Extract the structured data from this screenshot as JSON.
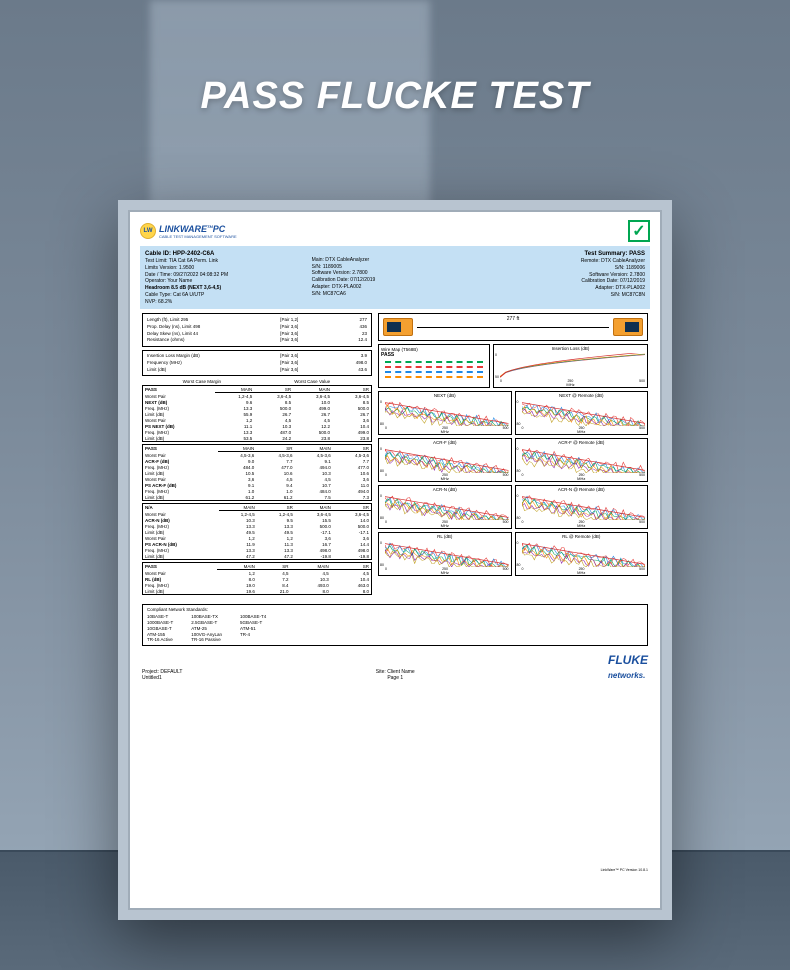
{
  "page_title": "PASS FLUCKE TEST",
  "logo": {
    "badge": "LW",
    "name": "LINKWARE",
    "tm": "TM",
    "suffix": "PC",
    "sub": "CABLE TEST MANAGEMENT SOFTWARE"
  },
  "checkmark": "✓",
  "header": {
    "left": {
      "cable_id_label": "Cable ID:",
      "cable_id": "HPP-2402-C6A",
      "lines": [
        "Test Limit: TIA Cat 6A Perm. Link",
        "Limits Version: 1.9500",
        "Date / Time: 09/27/2022  04:08:32 PM",
        "Operator: Your Name",
        "Headroom 8.5 dB (NEXT 3,6-4,5)",
        "Cable Type: Cat 6A U/UTP",
        "NVP: 68.2%"
      ],
      "headroom_bold_idx": 4
    },
    "mid": {
      "lines": [
        "Main: DTX CableAnalyzer",
        "S/N: 1189005",
        "Software Version: 2.7800",
        "Calibration Date: 07/12/2019",
        "Adapter: DTX-PLA002",
        "S/N: MC87CA6"
      ]
    },
    "right": {
      "summary_label": "Test Summary:",
      "summary": "PASS",
      "lines": [
        "Remote: DTX CableAnalyzer",
        "S/N: 1189006",
        "Software Version: 2.7800",
        "Calibration Date: 07/12/2019",
        "Adapter: DTX-PLA002",
        "S/N: MC87C8N"
      ]
    }
  },
  "basics": {
    "rows": [
      [
        "Length (ft), Limit 295",
        "[Pair 1,2]",
        "277"
      ],
      [
        "Prop. Delay (ns), Limit 498",
        "[Pair 3,6]",
        "436"
      ],
      [
        "Delay Skew (ns), Limit 44",
        "[Pair 3,6]",
        "23"
      ],
      [
        "Resistance (ohms)",
        "[Pair 3,6]",
        "12.4"
      ]
    ],
    "rows2": [
      [
        "Insertion Loss Margin (dB)",
        "[Pair 3,6]",
        "3.9"
      ],
      [
        "Frequency (MHz)",
        "[Pair 3,6]",
        "498.0"
      ],
      [
        "Limit (dB)",
        "[Pair 3,6]",
        "43.6"
      ]
    ]
  },
  "metrics_header": {
    "l": "Worst Case Margin",
    "r": "Worst Case Value"
  },
  "metric_cols": [
    "",
    "MAIN",
    "SR",
    "MAIN",
    "SR"
  ],
  "metrics": [
    {
      "status": "PASS",
      "rows": [
        [
          "Worst Pair",
          "1,2-4,5",
          "3,6-4,5",
          "3,6-4,5",
          "3,6-4,5"
        ],
        [
          "NEXT (dB)",
          "9.6",
          "8.5",
          "10.0",
          "8.5",
          "bold"
        ],
        [
          "Freq. (MHz)",
          "13.3",
          "500.0",
          "499.0",
          "500.0"
        ],
        [
          "Limit (dB)",
          "55.9",
          "26.7",
          "26.7",
          "26.7"
        ],
        [
          "Worst Pair",
          "1,2",
          "4,5",
          "4,5",
          "3,6"
        ],
        [
          "PS NEXT (dB)",
          "11.1",
          "10.3",
          "12.2",
          "10.4",
          "bold"
        ],
        [
          "Freq. (MHz)",
          "13.3",
          "487.0",
          "500.0",
          "499.0"
        ],
        [
          "Limit (dB)",
          "53.5",
          "24.2",
          "23.8",
          "23.8"
        ]
      ]
    },
    {
      "status": "PASS",
      "rows": [
        [
          "Worst Pair",
          "4,5-3,6",
          "4,5-3,6",
          "4,5-3,6",
          "4,5-3,6"
        ],
        [
          "ACR-F (dB)",
          "9.0",
          "7.7",
          "9.1",
          "7.7",
          "bold"
        ],
        [
          "Freq. (MHz)",
          "484.0",
          "477.0",
          "494.0",
          "477.0"
        ],
        [
          "Limit (dB)",
          "10.5",
          "10.6",
          "10.3",
          "10.6"
        ],
        [
          "Worst Pair",
          "3,6",
          "4,5",
          "4,5",
          "3,6"
        ],
        [
          "PS ACR-F (dB)",
          "9.1",
          "9.4",
          "10.7",
          "11.0",
          "bold"
        ],
        [
          "Freq. (MHz)",
          "1.0",
          "1.0",
          "484.0",
          "494.0"
        ],
        [
          "Limit (dB)",
          "61.2",
          "61.2",
          "7.5",
          "7.3"
        ]
      ]
    },
    {
      "status": "N/A",
      "rows": [
        [
          "Worst Pair",
          "1,2-4,5",
          "1,2-4,5",
          "3,6-4,5",
          "3,6-4,5"
        ],
        [
          "ACR-N (dB)",
          "10.3",
          "9.5",
          "15.5",
          "14.0",
          "bold"
        ],
        [
          "Freq. (MHz)",
          "13.3",
          "13.3",
          "500.0",
          "500.0"
        ],
        [
          "Limit (dB)",
          "49.5",
          "49.5",
          "-17.1",
          "-17.1"
        ],
        [
          "Worst Pair",
          "1,2",
          "1,2",
          "3,6",
          "3,6"
        ],
        [
          "PS ACR-N (dB)",
          "11.9",
          "11.3",
          "16.7",
          "14.4",
          "bold"
        ],
        [
          "Freq. (MHz)",
          "13.3",
          "13.3",
          "498.0",
          "498.0"
        ],
        [
          "Limit (dB)",
          "47.2",
          "47.2",
          "-19.8",
          "-19.8"
        ]
      ]
    },
    {
      "status": "PASS",
      "rows": [
        [
          "Worst Pair",
          "1,2",
          "4,5",
          "4,5",
          "4,5"
        ],
        [
          "RL (dB)",
          "8.0",
          "7.2",
          "10.3",
          "10.4",
          "bold"
        ],
        [
          "Freq. (MHz)",
          "19.0",
          "8.4",
          "493.0",
          "463.0"
        ],
        [
          "Limit (dB)",
          "19.6",
          "21.0",
          "8.0",
          "8.0"
        ]
      ]
    }
  ],
  "cable_length": "277 ft",
  "wiremap": {
    "title": "Wire Map (T568B)",
    "pass": "PASS",
    "colors": [
      "#00a651",
      "#e53935",
      "#1e88e5",
      "#fb8c00"
    ]
  },
  "charts": [
    {
      "title": "Insertion Loss (dB)",
      "type": "il",
      "xl": "MHz",
      "full": true,
      "xticks": [
        "0",
        "250",
        "500"
      ],
      "yticks": [
        "0",
        "50"
      ]
    },
    {
      "title": "NEXT (dB)",
      "type": "noise",
      "xl": "MHz"
    },
    {
      "title": "NEXT @ Remote (dB)",
      "type": "noise",
      "xl": "MHz"
    },
    {
      "title": "ACR-F (dB)",
      "type": "noise",
      "xl": "MHz"
    },
    {
      "title": "ACR-F @ Remote (dB)",
      "type": "noise",
      "xl": "MHz"
    },
    {
      "title": "ACR-N (dB)",
      "type": "noise",
      "xl": "MHz"
    },
    {
      "title": "ACR-N @ Remote (dB)",
      "type": "noise",
      "xl": "MHz"
    },
    {
      "title": "RL (dB)",
      "type": "noise",
      "xl": "MHz"
    },
    {
      "title": "RL @ Remote (dB)",
      "type": "noise",
      "xl": "MHz"
    }
  ],
  "chart_style": {
    "noise_colors": [
      "#e53935",
      "#1e88e5",
      "#00a651",
      "#fb8c00",
      "#8e24aa",
      "#c0a020"
    ],
    "limit_color": "#d32f2f",
    "il_colors": [
      "#e53935",
      "#1e88e5",
      "#00a651",
      "#fb8c00"
    ],
    "xticks": [
      "0",
      "250",
      "500"
    ],
    "yticks": [
      "0",
      "80"
    ]
  },
  "standards": {
    "title": "Compliant Network Standards:",
    "cols": [
      [
        "10BASE-T",
        "1000BASE-T",
        "10GBASE-T",
        "ATM-155",
        "TR-16 Active"
      ],
      [
        "100BASE-TX",
        "2.5GBASE-T",
        "ATM-25",
        "100VG-AnyLan",
        "TR-16 Passive"
      ],
      [
        "100BASE-T4",
        "5GBASE-T",
        "ATM-51",
        "TR-4",
        ""
      ]
    ]
  },
  "footer": {
    "project_label": "Project:",
    "project": "DEFAULT",
    "untitled": "Untitled1",
    "site_label": "Site:",
    "site": "Client Name",
    "page": "Page 1",
    "fluke": "FLUKE",
    "networks": "networks."
  },
  "version": "LinkWare™ PC Version 10.8.1"
}
